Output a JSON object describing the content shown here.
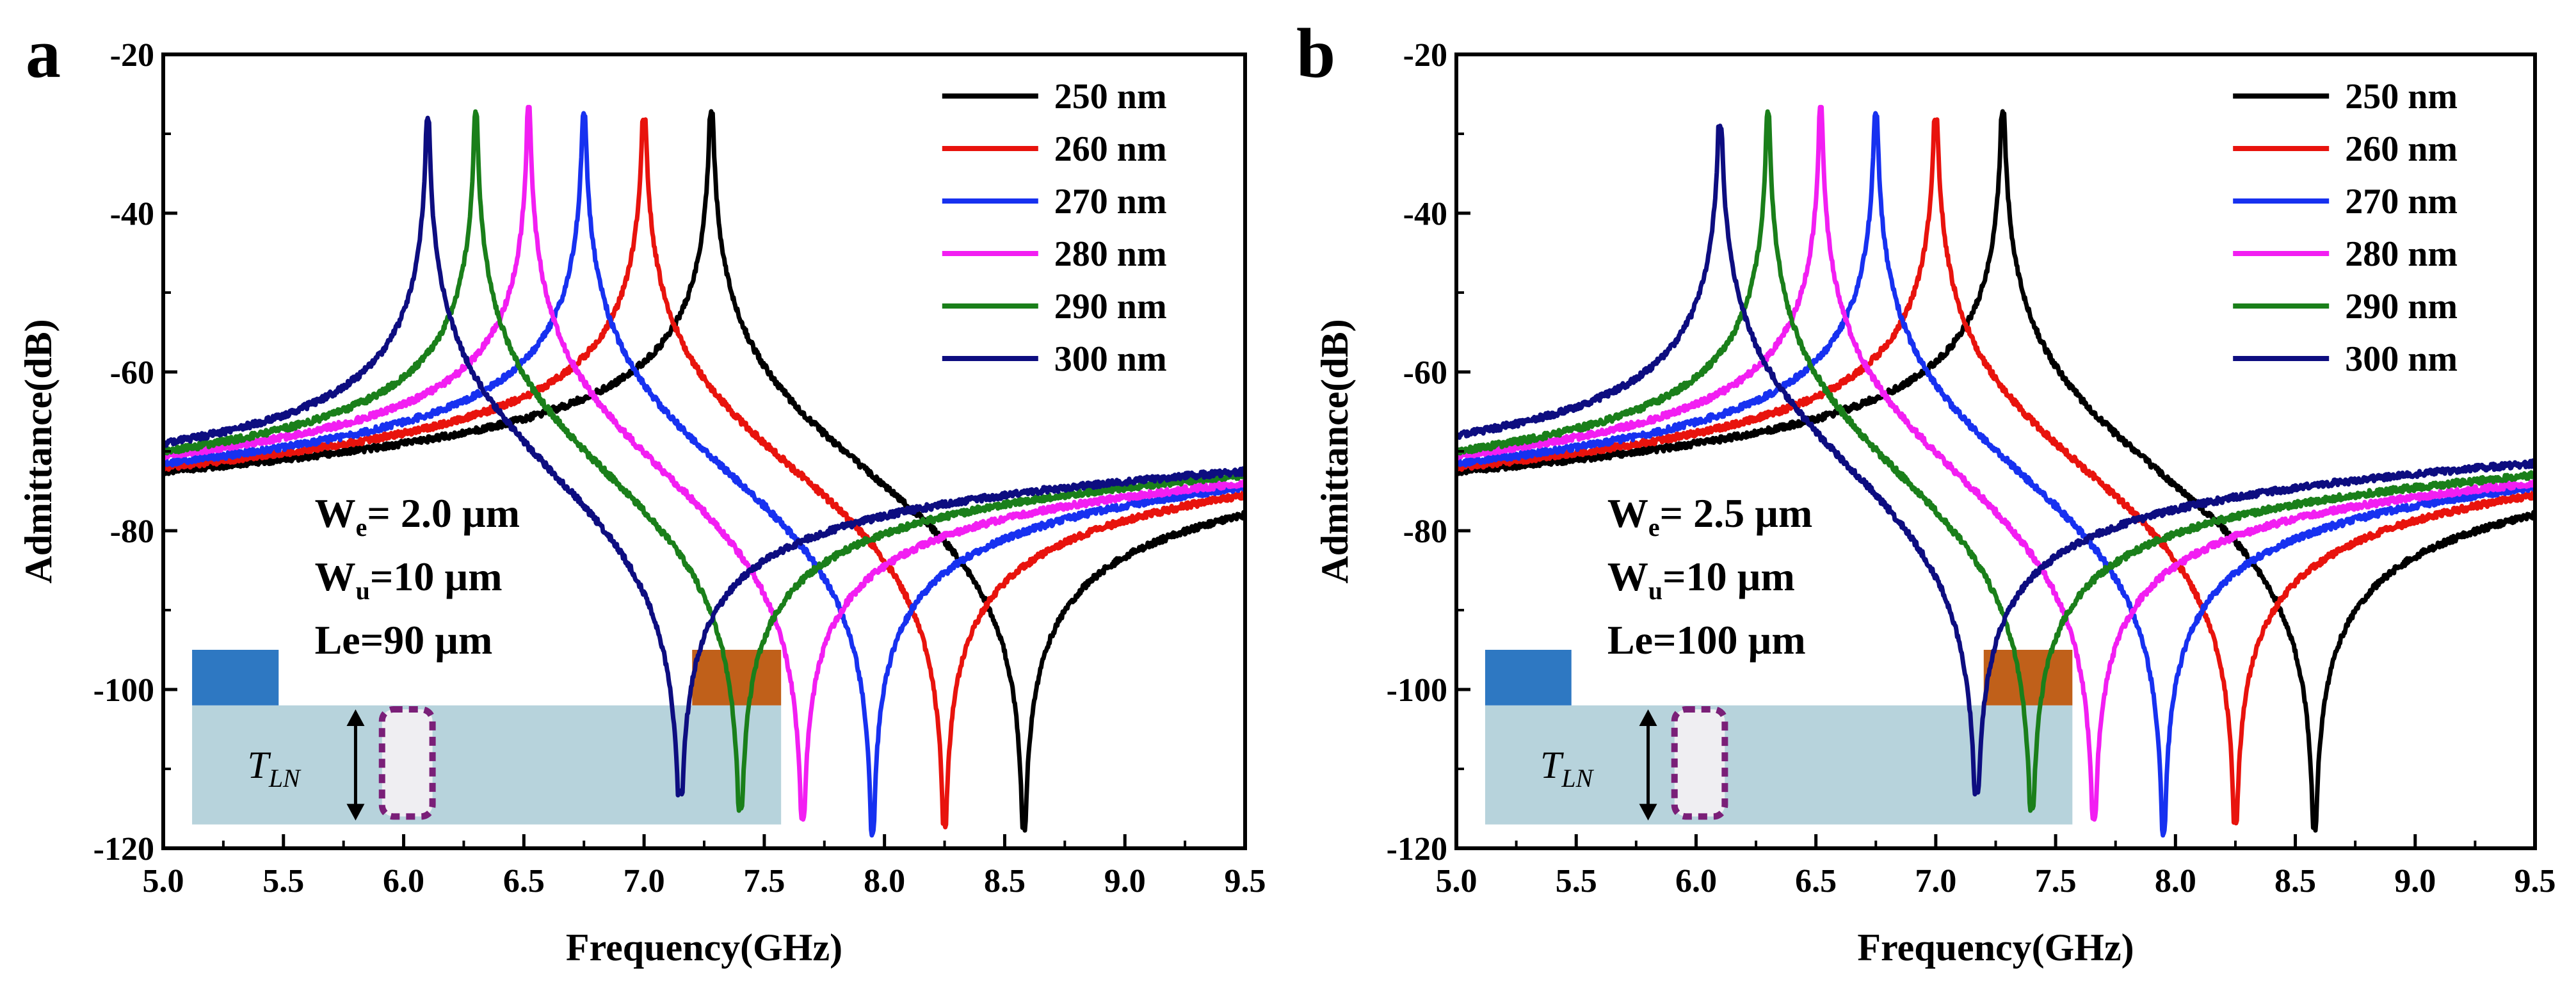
{
  "chart_data": [
    {
      "type": "line",
      "panel_label": "a",
      "xlabel": "Frequency(GHz)",
      "ylabel": "Admittance(dB)",
      "xlim": [
        5.0,
        9.5
      ],
      "ylim": [
        -120,
        -20
      ],
      "xticks": [
        "5.0",
        "5.5",
        "6.0",
        "6.5",
        "7.0",
        "7.5",
        "8.0",
        "8.5",
        "9.0",
        "9.5"
      ],
      "yticks": [
        "-20",
        "-40",
        "-60",
        "-80",
        "-100",
        "-120"
      ],
      "legend_position": "top-right",
      "grid": false,
      "annotation": {
        "we_main": "W",
        "we_sub": "e",
        "we_value": "= 2.0 µm",
        "wu_main": "W",
        "wu_sub": "u",
        "wu_value": "=10 µm",
        "le_text": "Le=90 µm"
      },
      "inset": {
        "label_main": "T",
        "label_sub": "LN"
      },
      "series": [
        {
          "name": "250 nm",
          "color": "#000000",
          "resonance_ghz": 7.28,
          "antiresonance_ghz": 8.58,
          "peak_db": -27.5,
          "valley_db": -117.5,
          "start_db": -72.5,
          "end_db": -78
        },
        {
          "name": "260 nm",
          "color": "#e8130d",
          "resonance_ghz": 7.0,
          "antiresonance_ghz": 8.25,
          "peak_db": -28.5,
          "valley_db": -117,
          "start_db": -72,
          "end_db": -75.5
        },
        {
          "name": "270 nm",
          "color": "#1731f0",
          "resonance_ghz": 6.75,
          "antiresonance_ghz": 7.95,
          "peak_db": -27.5,
          "valley_db": -118,
          "start_db": -71.5,
          "end_db": -74.5
        },
        {
          "name": "280 nm",
          "color": "#f21ef2",
          "resonance_ghz": 6.52,
          "antiresonance_ghz": 7.66,
          "peak_db": -27,
          "valley_db": -116,
          "start_db": -70.5,
          "end_db": -74
        },
        {
          "name": "290 nm",
          "color": "#1a7f1a",
          "resonance_ghz": 6.3,
          "antiresonance_ghz": 7.4,
          "peak_db": -27.5,
          "valley_db": -115,
          "start_db": -70,
          "end_db": -73
        },
        {
          "name": "300 nm",
          "color": "#0d0d80",
          "resonance_ghz": 6.1,
          "antiresonance_ghz": 7.15,
          "peak_db": -28,
          "valley_db": -113,
          "start_db": -69,
          "end_db": -72.5
        }
      ]
    },
    {
      "type": "line",
      "panel_label": "b",
      "xlabel": "Frequency(GHz)",
      "ylabel": "Admittance(dB)",
      "xlim": [
        5.0,
        9.5
      ],
      "ylim": [
        -120,
        -20
      ],
      "xticks": [
        "5.0",
        "5.5",
        "6.0",
        "6.5",
        "7.0",
        "7.5",
        "8.0",
        "8.5",
        "9.0",
        "9.5"
      ],
      "yticks": [
        "-20",
        "-40",
        "-60",
        "-80",
        "-100",
        "-120"
      ],
      "legend_position": "top-right",
      "grid": false,
      "annotation": {
        "we_main": "W",
        "we_sub": "e",
        "we_value": "= 2.5 µm",
        "wu_main": "W",
        "wu_sub": "u",
        "wu_value": "=10 µm",
        "le_text": "Le=100 µm"
      },
      "inset": {
        "label_main": "T",
        "label_sub": "LN"
      },
      "series": [
        {
          "name": "250 nm",
          "color": "#000000",
          "resonance_ghz": 7.28,
          "antiresonance_ghz": 8.58,
          "peak_db": -27.5,
          "valley_db": -117.5,
          "start_db": -72.5,
          "end_db": -78
        },
        {
          "name": "260 nm",
          "color": "#e8130d",
          "resonance_ghz": 7.0,
          "antiresonance_ghz": 8.25,
          "peak_db": -28.5,
          "valley_db": -116.5,
          "start_db": -72,
          "end_db": -75.5
        },
        {
          "name": "270 nm",
          "color": "#1731f0",
          "resonance_ghz": 6.75,
          "antiresonance_ghz": 7.95,
          "peak_db": -27.5,
          "valley_db": -118,
          "start_db": -71.5,
          "end_db": -74.5
        },
        {
          "name": "280 nm",
          "color": "#f21ef2",
          "resonance_ghz": 6.52,
          "antiresonance_ghz": 7.66,
          "peak_db": -27,
          "valley_db": -116,
          "start_db": -70.5,
          "end_db": -74
        },
        {
          "name": "290 nm",
          "color": "#1a7f1a",
          "resonance_ghz": 6.3,
          "antiresonance_ghz": 7.4,
          "peak_db": -27.5,
          "valley_db": -115,
          "start_db": -70,
          "end_db": -73
        },
        {
          "name": "300 nm",
          "color": "#0d0d80",
          "resonance_ghz": 6.1,
          "antiresonance_ghz": 7.17,
          "peak_db": -29,
          "valley_db": -113,
          "start_db": -68,
          "end_db": -71.5
        }
      ]
    }
  ],
  "colors": {
    "electrode_left": "#2e78c2",
    "electrode_right": "#c0601a",
    "substrate": "#b7d3dc",
    "dashed_box": "#7a1f78"
  }
}
